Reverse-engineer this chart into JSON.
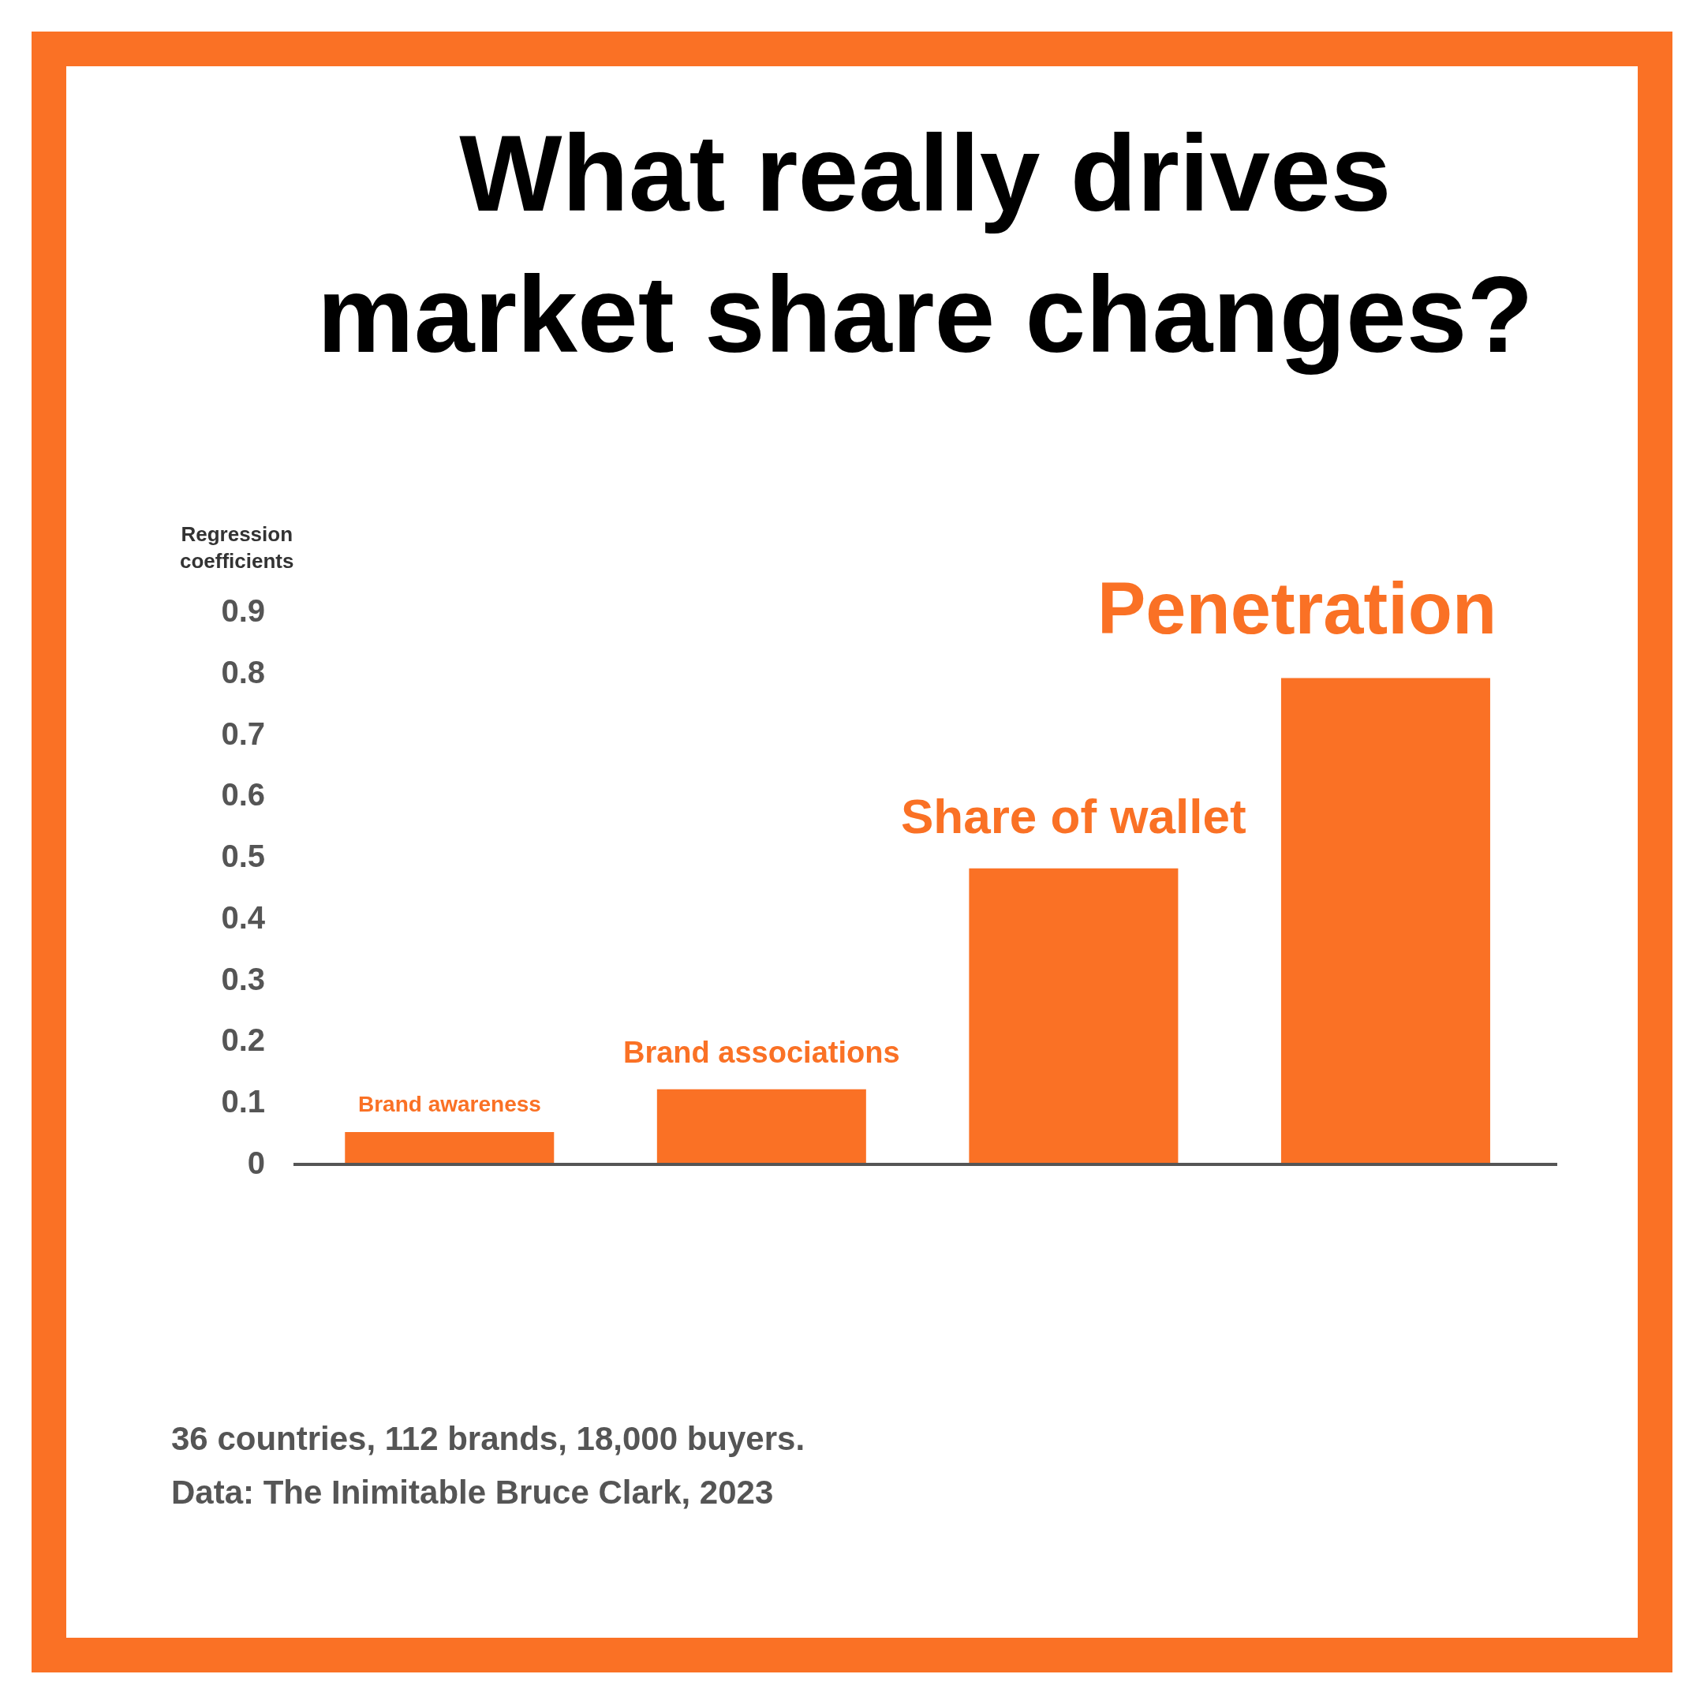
{
  "chart_data": {
    "type": "bar",
    "title": "What really drives\nmarket share changes?",
    "ylabel": "Regression\ncoefficients",
    "categories": [
      "Brand awareness",
      "Brand associations",
      "Share of wallet",
      "Penetration"
    ],
    "values": [
      0.05,
      0.12,
      0.48,
      0.79
    ],
    "color": "#fa7125",
    "ylim": [
      0,
      0.9
    ],
    "yticks": [
      0,
      0.1,
      0.2,
      0.3,
      0.4,
      0.5,
      0.6,
      0.7,
      0.8,
      0.9
    ],
    "annotations": [
      "36 countries, 112 brands, 18,000 buyers.",
      "Data: The Inimitable Bruce Clark, 2023"
    ]
  }
}
